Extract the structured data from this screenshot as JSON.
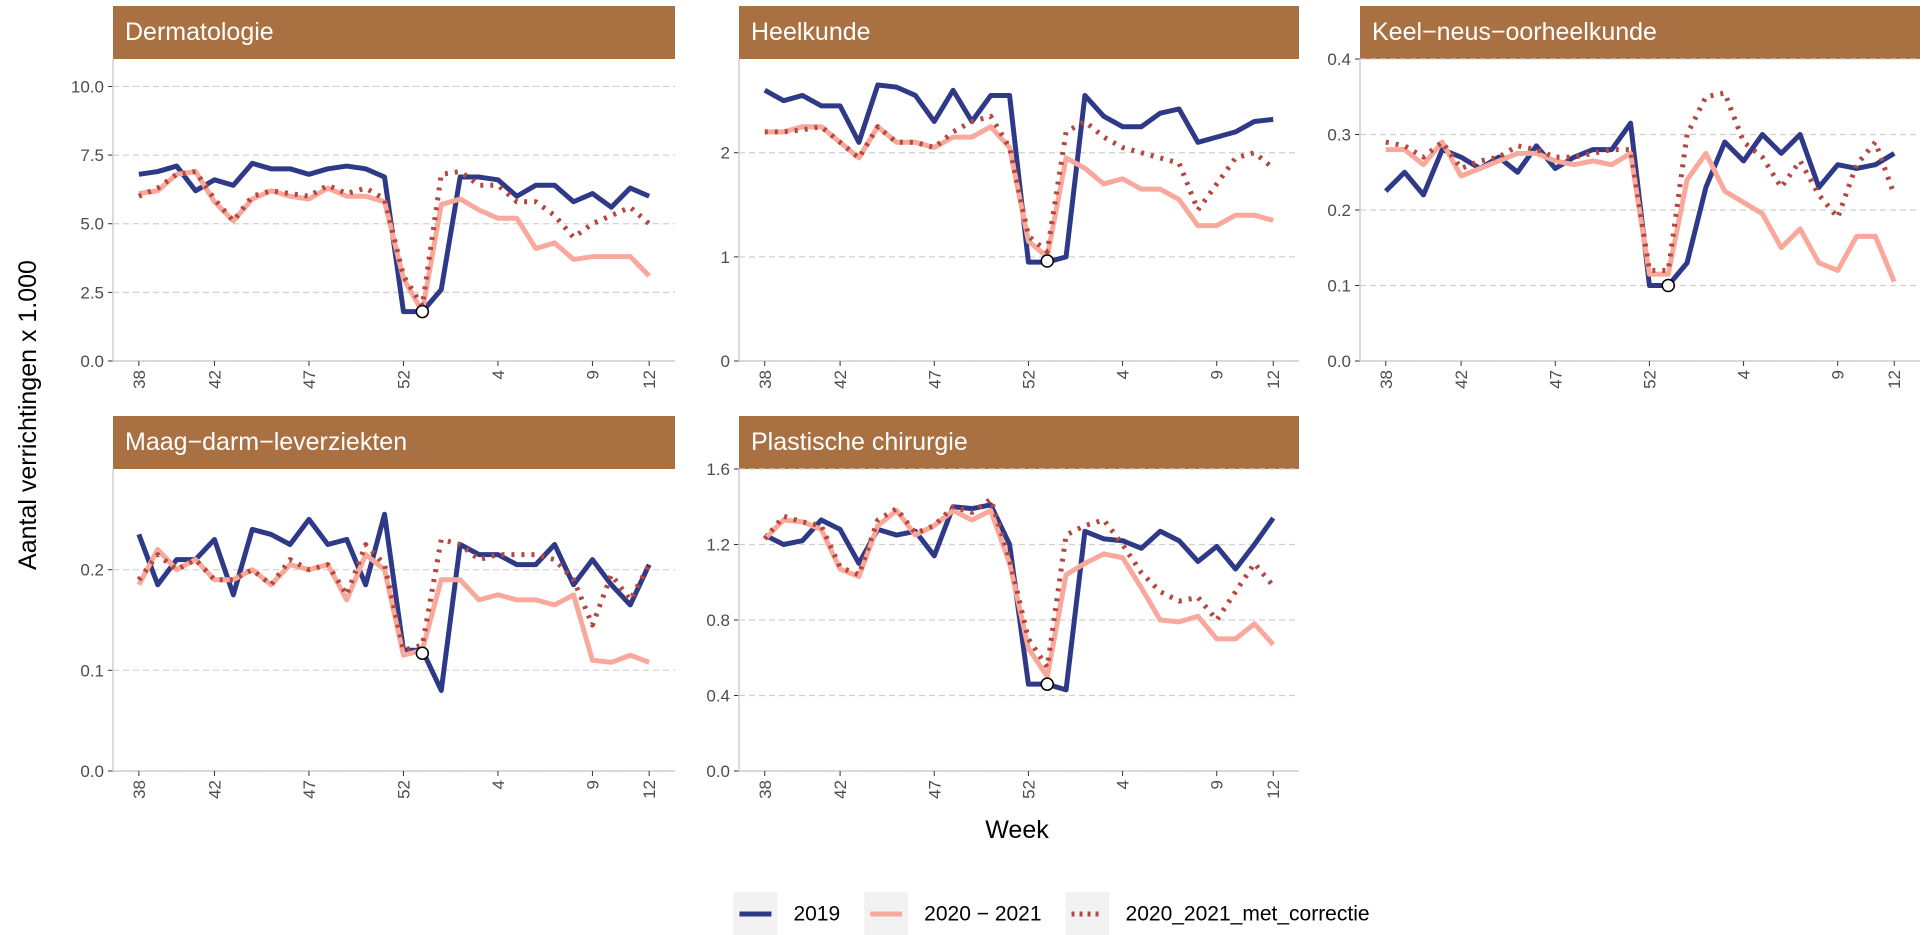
{
  "chart_data": {
    "type": "line",
    "y_label": "Aantal verrichtingen x 1.000",
    "x_label": "Week",
    "grid": true,
    "legend": "bottom",
    "categories": [
      "38",
      null,
      null,
      null,
      "42",
      null,
      null,
      null,
      null,
      "47",
      null,
      null,
      null,
      null,
      "52",
      null,
      null,
      null,
      null,
      "4",
      null,
      null,
      null,
      null,
      "9",
      null,
      null,
      "12"
    ],
    "series": [
      {
        "name": "2019",
        "color": "#2e3a87",
        "dash": "solid"
      },
      {
        "name": "2020 − 2021",
        "color": "#f8a99b",
        "dash": "solid"
      },
      {
        "name": "2020_2021_met_correctie",
        "color": "#b5473e",
        "dash": "dotted"
      }
    ],
    "panels": [
      {
        "title": "Dermatologie",
        "ylim": [
          0,
          11
        ],
        "yticks": [
          {
            "value": 0,
            "label": "0.0"
          },
          2.5,
          {
            "value": 5,
            "label": "5.0"
          },
          7.5,
          {
            "value": 10,
            "label": "10.0"
          }
        ],
        "highlight": {
          "index": 15,
          "value": 1.8
        },
        "values": [
          [
            6.8,
            6.9,
            7.1,
            6.2,
            6.6,
            6.4,
            7.2,
            7.0,
            7.0,
            6.8,
            7.0,
            7.1,
            7.0,
            6.7,
            1.8,
            1.8,
            2.6,
            6.7,
            6.7,
            6.6,
            6.0,
            6.4,
            6.4,
            5.8,
            6.1,
            5.6,
            6.3,
            6.0
          ],
          [
            6.1,
            6.2,
            6.8,
            6.9,
            5.8,
            5.1,
            5.9,
            6.2,
            6.0,
            5.9,
            6.3,
            6.0,
            6.0,
            5.8,
            3.0,
            1.8,
            5.7,
            5.9,
            5.5,
            5.2,
            5.2,
            4.1,
            4.3,
            3.7,
            3.8,
            3.8,
            3.8,
            3.1
          ],
          [
            6.0,
            6.3,
            6.8,
            6.9,
            5.9,
            5.1,
            6.0,
            6.2,
            6.1,
            6.0,
            6.4,
            6.1,
            6.3,
            5.9,
            3.1,
            2.0,
            6.8,
            6.9,
            6.4,
            6.4,
            5.8,
            5.8,
            5.3,
            4.5,
            5.0,
            5.3,
            5.6,
            5.0
          ]
        ]
      },
      {
        "title": "Heelkunde",
        "ylim": [
          0,
          2.9
        ],
        "yticks": [
          0,
          1,
          2
        ],
        "highlight": {
          "index": 15,
          "value": 0.96
        },
        "values": [
          [
            2.6,
            2.5,
            2.55,
            2.45,
            2.45,
            2.1,
            2.65,
            2.63,
            2.55,
            2.3,
            2.6,
            2.3,
            2.55,
            2.55,
            0.95,
            0.95,
            1.0,
            2.55,
            2.35,
            2.25,
            2.25,
            2.38,
            2.42,
            2.1,
            2.15,
            2.2,
            2.3,
            2.32
          ],
          [
            2.2,
            2.2,
            2.25,
            2.25,
            2.1,
            1.95,
            2.25,
            2.1,
            2.1,
            2.05,
            2.15,
            2.15,
            2.25,
            2.05,
            1.15,
            1.0,
            1.95,
            1.85,
            1.7,
            1.75,
            1.65,
            1.65,
            1.55,
            1.3,
            1.3,
            1.4,
            1.4,
            1.35
          ],
          [
            2.2,
            2.2,
            2.22,
            2.25,
            2.1,
            1.95,
            2.25,
            2.1,
            2.1,
            2.05,
            2.2,
            2.3,
            2.35,
            2.05,
            1.2,
            1.05,
            2.2,
            2.3,
            2.15,
            2.05,
            2.0,
            1.95,
            1.9,
            1.45,
            1.7,
            1.95,
            2.0,
            1.85
          ]
        ]
      },
      {
        "title": "Keel−neus−oorheelkunde",
        "ylim": [
          0,
          0.4
        ],
        "yticks": [
          {
            "value": 0,
            "label": "0.0"
          },
          0.1,
          0.2,
          0.3,
          0.4
        ],
        "highlight": {
          "index": 15,
          "value": 0.1
        },
        "values": [
          [
            0.225,
            0.25,
            0.22,
            0.28,
            0.27,
            0.255,
            0.27,
            0.25,
            0.285,
            0.255,
            0.27,
            0.28,
            0.28,
            0.315,
            0.1,
            0.1,
            0.13,
            0.23,
            0.29,
            0.265,
            0.3,
            0.275,
            0.3,
            0.23,
            0.26,
            0.255,
            0.26,
            0.275
          ],
          [
            0.28,
            0.28,
            0.26,
            0.29,
            0.245,
            0.255,
            0.265,
            0.275,
            0.275,
            0.265,
            0.26,
            0.265,
            0.26,
            0.275,
            0.115,
            0.115,
            0.24,
            0.275,
            0.225,
            0.21,
            0.195,
            0.15,
            0.175,
            0.13,
            0.12,
            0.165,
            0.165,
            0.105
          ],
          [
            0.29,
            0.285,
            0.27,
            0.29,
            0.255,
            0.265,
            0.27,
            0.285,
            0.28,
            0.27,
            0.27,
            0.275,
            0.28,
            0.28,
            0.12,
            0.12,
            0.3,
            0.35,
            0.355,
            0.29,
            0.27,
            0.23,
            0.265,
            0.22,
            0.19,
            0.26,
            0.29,
            0.22
          ]
        ]
      },
      {
        "title": "Maag−darm−leverziekten",
        "ylim": [
          0,
          0.3
        ],
        "yticks": [
          {
            "value": 0,
            "label": "0.0"
          },
          0.1,
          0.2
        ],
        "highlight": {
          "index": 15,
          "value": 0.117
        },
        "values": [
          [
            0.235,
            0.185,
            0.21,
            0.21,
            0.23,
            0.175,
            0.24,
            0.235,
            0.225,
            0.25,
            0.225,
            0.23,
            0.185,
            0.255,
            0.12,
            0.12,
            0.08,
            0.225,
            0.215,
            0.215,
            0.205,
            0.205,
            0.225,
            0.185,
            0.21,
            0.185,
            0.165,
            0.205
          ],
          [
            0.185,
            0.22,
            0.2,
            0.21,
            0.19,
            0.19,
            0.2,
            0.185,
            0.205,
            0.2,
            0.205,
            0.17,
            0.215,
            0.2,
            0.115,
            0.12,
            0.19,
            0.19,
            0.17,
            0.175,
            0.17,
            0.17,
            0.165,
            0.175,
            0.11,
            0.108,
            0.115,
            0.108
          ],
          [
            0.19,
            0.215,
            0.2,
            0.21,
            0.19,
            0.19,
            0.2,
            0.185,
            0.21,
            0.2,
            0.205,
            0.175,
            0.225,
            0.205,
            0.12,
            0.125,
            0.23,
            0.225,
            0.21,
            0.215,
            0.215,
            0.215,
            0.21,
            0.19,
            0.145,
            0.195,
            0.17,
            0.205
          ]
        ]
      },
      {
        "title": "Plastische chirurgie",
        "ylim": [
          0,
          1.6
        ],
        "yticks": [
          {
            "value": 0,
            "label": "0.0"
          },
          0.4,
          0.8,
          1.2,
          1.6
        ],
        "highlight": {
          "index": 15,
          "value": 0.46
        },
        "values": [
          [
            1.25,
            1.2,
            1.22,
            1.33,
            1.28,
            1.1,
            1.28,
            1.25,
            1.27,
            1.14,
            1.4,
            1.39,
            1.41,
            1.2,
            0.46,
            0.46,
            0.43,
            1.27,
            1.23,
            1.22,
            1.18,
            1.27,
            1.22,
            1.11,
            1.19,
            1.07,
            1.2,
            1.34
          ],
          [
            1.23,
            1.33,
            1.32,
            1.28,
            1.07,
            1.03,
            1.3,
            1.38,
            1.25,
            1.3,
            1.38,
            1.33,
            1.38,
            1.1,
            0.65,
            0.5,
            1.04,
            1.1,
            1.15,
            1.13,
            0.97,
            0.8,
            0.79,
            0.82,
            0.7,
            0.7,
            0.78,
            0.67
          ],
          [
            1.23,
            1.35,
            1.32,
            1.3,
            1.08,
            1.04,
            1.33,
            1.39,
            1.26,
            1.3,
            1.4,
            1.37,
            1.44,
            1.12,
            0.7,
            0.55,
            1.25,
            1.3,
            1.33,
            1.2,
            1.05,
            0.95,
            0.9,
            0.92,
            0.8,
            0.95,
            1.1,
            0.98
          ]
        ]
      }
    ]
  }
}
